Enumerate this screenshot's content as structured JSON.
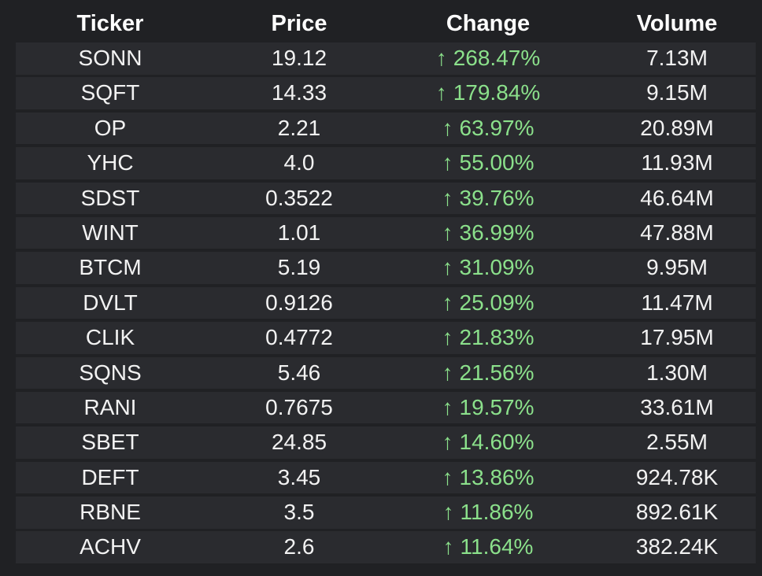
{
  "table": {
    "headers": [
      "Ticker",
      "Price",
      "Change",
      "Volume"
    ],
    "rows": [
      {
        "ticker": "SONN",
        "price": "19.12",
        "change": "268.47%",
        "volume": "7.13M"
      },
      {
        "ticker": "SQFT",
        "price": "14.33",
        "change": "179.84%",
        "volume": "9.15M"
      },
      {
        "ticker": "OP",
        "price": "2.21",
        "change": "63.97%",
        "volume": "20.89M"
      },
      {
        "ticker": "YHC",
        "price": "4.0",
        "change": "55.00%",
        "volume": "11.93M"
      },
      {
        "ticker": "SDST",
        "price": "0.3522",
        "change": "39.76%",
        "volume": "46.64M"
      },
      {
        "ticker": "WINT",
        "price": "1.01",
        "change": "36.99%",
        "volume": "47.88M"
      },
      {
        "ticker": "BTCM",
        "price": "5.19",
        "change": "31.09%",
        "volume": "9.95M"
      },
      {
        "ticker": "DVLT",
        "price": "0.9126",
        "change": "25.09%",
        "volume": "11.47M"
      },
      {
        "ticker": "CLIK",
        "price": "0.4772",
        "change": "21.83%",
        "volume": "17.95M"
      },
      {
        "ticker": "SQNS",
        "price": "5.46",
        "change": "21.56%",
        "volume": "1.30M"
      },
      {
        "ticker": "RANI",
        "price": "0.7675",
        "change": "19.57%",
        "volume": "33.61M"
      },
      {
        "ticker": "SBET",
        "price": "24.85",
        "change": "14.60%",
        "volume": "2.55M"
      },
      {
        "ticker": "DEFT",
        "price": "3.45",
        "change": "13.86%",
        "volume": "924.78K"
      },
      {
        "ticker": "RBNE",
        "price": "3.5",
        "change": "11.86%",
        "volume": "892.61K"
      },
      {
        "ticker": "ACHV",
        "price": "2.6",
        "change": "11.64%",
        "volume": "382.24K"
      }
    ]
  },
  "icons": {
    "change_arrow": "up-arrow-icon"
  },
  "colors": {
    "background": "#202124",
    "row_background": "#2a2b2f",
    "header_text": "#ffffff",
    "cell_text": "#f2f2f2",
    "positive_change": "#8be08b"
  }
}
